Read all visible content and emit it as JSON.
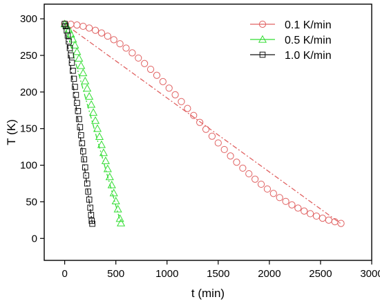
{
  "chart_data": {
    "type": "scatter",
    "title": "",
    "xlabel": "t (min)",
    "ylabel": "T (K)",
    "xlim": [
      -200,
      3000
    ],
    "ylim": [
      -30,
      320
    ],
    "xticks": [
      0,
      500,
      1000,
      1500,
      2000,
      2500,
      3000
    ],
    "yticks": [
      0,
      50,
      100,
      150,
      200,
      250,
      300
    ],
    "grid": false,
    "legend_position": "top-right",
    "series": [
      {
        "name": "0.1 K/min",
        "color": "#e06060",
        "marker": "circle",
        "points": [
          [
            0,
            293
          ],
          [
            60,
            292.6
          ],
          [
            120,
            291.5
          ],
          [
            180,
            289.8
          ],
          [
            240,
            287.4
          ],
          [
            300,
            284.3
          ],
          [
            360,
            280.6
          ],
          [
            420,
            276.3
          ],
          [
            480,
            271.4
          ],
          [
            540,
            265.9
          ],
          [
            600,
            259.9
          ],
          [
            660,
            253.4
          ],
          [
            720,
            246.4
          ],
          [
            780,
            238.9
          ],
          [
            840,
            231.0
          ],
          [
            900,
            222.8
          ],
          [
            960,
            214.2
          ],
          [
            1020,
            205.3
          ],
          [
            1080,
            196.2
          ],
          [
            1140,
            186.9
          ],
          [
            1200,
            177.5
          ],
          [
            1260,
            168.0
          ],
          [
            1320,
            158.5
          ],
          [
            1380,
            149.0
          ],
          [
            1440,
            139.6
          ],
          [
            1500,
            130.4
          ],
          [
            1560,
            121.4
          ],
          [
            1620,
            112.6
          ],
          [
            1680,
            104.1
          ],
          [
            1740,
            96.0
          ],
          [
            1800,
            88.3
          ],
          [
            1860,
            80.9
          ],
          [
            1920,
            74.0
          ],
          [
            1980,
            67.5
          ],
          [
            2040,
            61.4
          ],
          [
            2100,
            55.8
          ],
          [
            2160,
            50.6
          ],
          [
            2220,
            45.8
          ],
          [
            2280,
            41.4
          ],
          [
            2340,
            37.4
          ],
          [
            2400,
            33.8
          ],
          [
            2460,
            30.5
          ],
          [
            2520,
            27.6
          ],
          [
            2580,
            25.0
          ],
          [
            2640,
            22.8
          ],
          [
            2700,
            20.5
          ]
        ],
        "trend_line": [
          [
            0,
            293
          ],
          [
            2700,
            20
          ]
        ]
      },
      {
        "name": "0.5 K/min",
        "color": "#33dd33",
        "marker": "triangle",
        "points": [
          [
            0,
            293
          ],
          [
            20,
            290
          ],
          [
            40,
            285
          ],
          [
            60,
            279
          ],
          [
            80,
            272
          ],
          [
            100,
            264
          ],
          [
            120,
            255
          ],
          [
            140,
            246
          ],
          [
            160,
            236
          ],
          [
            180,
            226
          ],
          [
            200,
            215
          ],
          [
            220,
            205
          ],
          [
            240,
            194
          ],
          [
            260,
            183
          ],
          [
            280,
            172
          ],
          [
            300,
            161
          ],
          [
            320,
            150
          ],
          [
            340,
            139
          ],
          [
            360,
            128
          ],
          [
            380,
            117
          ],
          [
            400,
            106
          ],
          [
            420,
            95
          ],
          [
            440,
            84
          ],
          [
            460,
            73
          ],
          [
            480,
            62
          ],
          [
            500,
            51
          ],
          [
            520,
            40
          ],
          [
            540,
            27
          ],
          [
            550,
            21
          ]
        ],
        "trend_line": [
          [
            0,
            293
          ],
          [
            550,
            20
          ]
        ]
      },
      {
        "name": "1.0 K/min",
        "color": "#111111",
        "marker": "square",
        "points": [
          [
            0,
            293
          ],
          [
            10,
            290
          ],
          [
            20,
            284
          ],
          [
            30,
            277
          ],
          [
            40,
            269
          ],
          [
            50,
            260
          ],
          [
            60,
            250
          ],
          [
            70,
            240
          ],
          [
            80,
            229
          ],
          [
            90,
            218
          ],
          [
            100,
            207
          ],
          [
            110,
            196
          ],
          [
            120,
            185
          ],
          [
            130,
            174
          ],
          [
            140,
            163
          ],
          [
            150,
            152
          ],
          [
            160,
            141
          ],
          [
            170,
            130
          ],
          [
            180,
            119
          ],
          [
            190,
            108
          ],
          [
            200,
            97
          ],
          [
            210,
            86
          ],
          [
            220,
            75
          ],
          [
            230,
            64
          ],
          [
            240,
            53
          ],
          [
            250,
            42
          ],
          [
            258,
            32
          ],
          [
            264,
            24
          ],
          [
            270,
            20
          ]
        ],
        "trend_line": [
          [
            0,
            293
          ],
          [
            270,
            20
          ]
        ]
      }
    ]
  }
}
